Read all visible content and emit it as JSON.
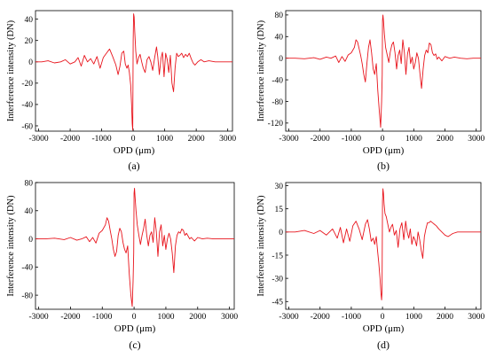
{
  "chart_data": [
    {
      "type": "line",
      "panel_label": "(a)",
      "xlabel": "OPD (μm)",
      "ylabel": "Interference intensity (DN)",
      "xlim": [
        -3100,
        3150
      ],
      "ylim": [
        -65,
        48
      ],
      "xticks": [
        -3000,
        -2000,
        -1000,
        0,
        1000,
        2000,
        3000
      ],
      "yticks": [
        -60,
        -40,
        -20,
        0,
        20,
        40
      ],
      "line_color": "#e8141c",
      "series": [
        {
          "x": [
            -3100,
            -2900,
            -2700,
            -2500,
            -2300,
            -2150,
            -2000,
            -1850,
            -1750,
            -1650,
            -1550,
            -1450,
            -1350,
            -1250,
            -1150,
            -1050,
            -950,
            -850,
            -750,
            -650,
            -550,
            -480,
            -420,
            -360,
            -300,
            -250,
            -200,
            -160,
            -120,
            -80,
            -50,
            -30,
            -15,
            0,
            15,
            30,
            50,
            80,
            120,
            170,
            220,
            270,
            320,
            380,
            440,
            500,
            560,
            620,
            680,
            740,
            780,
            830,
            880,
            930,
            980,
            1030,
            1080,
            1130,
            1180,
            1230,
            1280,
            1330,
            1380,
            1430,
            1480,
            1540,
            1600,
            1660,
            1720,
            1780,
            1840,
            1900,
            1960,
            2050,
            2150,
            2250,
            2400,
            2600,
            2800,
            3000,
            3150
          ],
          "y": [
            0,
            0,
            1,
            -1,
            0,
            2,
            -2,
            0,
            4,
            -4,
            6,
            0,
            3,
            -2,
            5,
            -6,
            4,
            8,
            12,
            5,
            -3,
            -12,
            -4,
            8,
            10,
            -2,
            -6,
            -3,
            -10,
            -22,
            -40,
            -58,
            -64,
            20,
            45,
            42,
            28,
            10,
            -2,
            4,
            7,
            0,
            -6,
            -10,
            2,
            5,
            0,
            -8,
            4,
            14,
            5,
            -12,
            3,
            9,
            -14,
            8,
            2,
            -10,
            6,
            -20,
            -28,
            -5,
            8,
            5,
            6,
            8,
            4,
            7,
            5,
            8,
            3,
            -1,
            -3,
            0,
            2,
            0,
            1,
            0,
            0,
            0,
            0
          ]
        }
      ]
    },
    {
      "type": "line",
      "panel_label": "(b)",
      "xlabel": "OPD (μm)",
      "ylabel": "Interference intensity (DN)",
      "xlim": [
        -3100,
        3150
      ],
      "ylim": [
        -135,
        88
      ],
      "xticks": [
        -3000,
        -2000,
        -1000,
        0,
        1000,
        2000,
        3000
      ],
      "yticks": [
        -120,
        -80,
        -40,
        0,
        40,
        80
      ],
      "line_color": "#e8141c",
      "series": [
        {
          "x": [
            -3100,
            -2800,
            -2500,
            -2200,
            -2000,
            -1800,
            -1650,
            -1500,
            -1400,
            -1300,
            -1200,
            -1100,
            -1000,
            -900,
            -850,
            -800,
            -750,
            -700,
            -650,
            -600,
            -550,
            -500,
            -450,
            -400,
            -350,
            -300,
            -250,
            -200,
            -150,
            -100,
            -60,
            -30,
            -10,
            0,
            15,
            30,
            60,
            100,
            150,
            200,
            250,
            300,
            350,
            400,
            450,
            500,
            550,
            600,
            650,
            700,
            750,
            800,
            850,
            900,
            950,
            1000,
            1050,
            1100,
            1150,
            1200,
            1250,
            1300,
            1350,
            1400,
            1450,
            1500,
            1550,
            1600,
            1650,
            1700,
            1750,
            1800,
            1900,
            2000,
            2150,
            2300,
            2500,
            2700,
            2900,
            3150
          ],
          "y": [
            0,
            0,
            -1,
            1,
            -2,
            2,
            0,
            4,
            -8,
            3,
            -6,
            6,
            10,
            20,
            34,
            30,
            18,
            5,
            -10,
            -30,
            -44,
            -10,
            20,
            34,
            10,
            -20,
            -30,
            -10,
            -60,
            -100,
            -128,
            -80,
            -30,
            70,
            80,
            70,
            45,
            20,
            6,
            -8,
            12,
            25,
            30,
            10,
            -20,
            5,
            15,
            -10,
            34,
            10,
            -30,
            8,
            20,
            -10,
            2,
            -20,
            -8,
            10,
            0,
            -30,
            -56,
            -20,
            5,
            15,
            10,
            28,
            25,
            10,
            5,
            8,
            -2,
            2,
            -5,
            3,
            0,
            2,
            0,
            -1,
            0,
            0
          ]
        }
      ]
    },
    {
      "type": "line",
      "panel_label": "(c)",
      "xlabel": "OPD (μm)",
      "ylabel": "Interference intensity (DN)",
      "xlim": [
        -3100,
        3150
      ],
      "ylim": [
        -100,
        80
      ],
      "xticks": [
        -3000,
        -2000,
        -1000,
        0,
        1000,
        2000,
        3000
      ],
      "yticks": [
        -80,
        -40,
        0,
        40,
        80
      ],
      "line_color": "#e8141c",
      "series": [
        {
          "x": [
            -3100,
            -2800,
            -2500,
            -2200,
            -2000,
            -1800,
            -1650,
            -1500,
            -1400,
            -1300,
            -1200,
            -1100,
            -1000,
            -900,
            -850,
            -800,
            -750,
            -700,
            -650,
            -600,
            -550,
            -500,
            -450,
            -400,
            -350,
            -300,
            -250,
            -200,
            -150,
            -100,
            -60,
            -30,
            -10,
            0,
            15,
            30,
            60,
            100,
            150,
            200,
            250,
            300,
            350,
            400,
            450,
            500,
            550,
            600,
            650,
            700,
            750,
            800,
            850,
            900,
            950,
            1000,
            1050,
            1100,
            1150,
            1200,
            1250,
            1300,
            1350,
            1400,
            1450,
            1500,
            1550,
            1600,
            1650,
            1700,
            1750,
            1800,
            1900,
            2000,
            2150,
            2300,
            2500,
            2700,
            2900,
            3150
          ],
          "y": [
            0,
            0,
            1,
            -1,
            2,
            -2,
            0,
            3,
            -4,
            2,
            -6,
            8,
            12,
            20,
            30,
            25,
            12,
            0,
            -15,
            -25,
            -18,
            5,
            15,
            10,
            -5,
            -15,
            -20,
            -10,
            -50,
            -80,
            -96,
            -60,
            -20,
            65,
            72,
            60,
            40,
            20,
            5,
            -8,
            5,
            15,
            28,
            5,
            -10,
            5,
            10,
            -5,
            30,
            10,
            -25,
            10,
            20,
            -10,
            5,
            -15,
            0,
            8,
            0,
            -20,
            -48,
            -10,
            5,
            10,
            8,
            14,
            12,
            5,
            8,
            4,
            0,
            2,
            -3,
            2,
            0,
            1,
            0,
            0,
            0,
            0
          ]
        }
      ]
    },
    {
      "type": "line",
      "panel_label": "(d)",
      "xlabel": "OPD (μm)",
      "ylabel": "Interference intensity (DN)",
      "xlim": [
        -3100,
        3150
      ],
      "ylim": [
        -50,
        32
      ],
      "xticks": [
        -3000,
        -2000,
        -1000,
        0,
        1000,
        2000,
        3000
      ],
      "yticks": [
        -45,
        -30,
        -15,
        0,
        15,
        30
      ],
      "line_color": "#e8141c",
      "series": [
        {
          "x": [
            -3100,
            -2800,
            -2500,
            -2200,
            -2000,
            -1800,
            -1600,
            -1450,
            -1350,
            -1250,
            -1150,
            -1050,
            -950,
            -850,
            -750,
            -650,
            -550,
            -480,
            -420,
            -360,
            -300,
            -250,
            -200,
            -160,
            -120,
            -80,
            -50,
            -30,
            -15,
            0,
            15,
            30,
            50,
            80,
            120,
            170,
            220,
            270,
            320,
            380,
            440,
            500,
            560,
            620,
            680,
            740,
            790,
            840,
            890,
            940,
            990,
            1040,
            1090,
            1140,
            1190,
            1240,
            1290,
            1340,
            1390,
            1440,
            1490,
            1540,
            1600,
            1660,
            1720,
            1800,
            1900,
            2000,
            2100,
            2250,
            2400,
            2600,
            2800,
            3000,
            3150
          ],
          "y": [
            0,
            0,
            1,
            -1,
            1,
            -2,
            2,
            -4,
            3,
            -7,
            2,
            -6,
            4,
            7,
            2,
            -5,
            5,
            8,
            2,
            -6,
            -4,
            -8,
            -3,
            -12,
            -20,
            -30,
            -40,
            -44,
            -38,
            20,
            28,
            25,
            18,
            12,
            10,
            5,
            0,
            3,
            5,
            -2,
            1,
            -10,
            2,
            6,
            -5,
            7,
            0,
            -4,
            2,
            -8,
            -3,
            -5,
            -9,
            0,
            -5,
            -12,
            -17,
            -3,
            2,
            6,
            6,
            7,
            6,
            5,
            4,
            2,
            0,
            -2,
            -3,
            -1,
            0,
            0,
            0,
            0,
            0
          ]
        }
      ]
    }
  ]
}
